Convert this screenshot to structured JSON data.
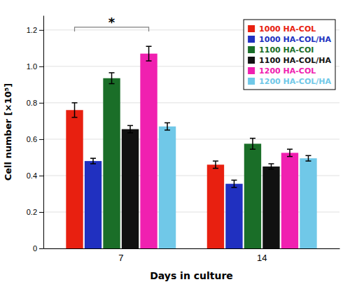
{
  "chart_data": {
    "type": "bar",
    "categories": [
      "7",
      "14"
    ],
    "series": [
      {
        "name": "1000 HA-COL",
        "color": "#e82010",
        "values": [
          0.76,
          0.46
        ],
        "errors": [
          0.04,
          0.02
        ]
      },
      {
        "name": "1000 HA-COL/HA",
        "color": "#2030c0",
        "values": [
          0.48,
          0.355
        ],
        "errors": [
          0.015,
          0.02
        ]
      },
      {
        "name": "1100 HA-COI",
        "color": "#1a6e28",
        "values": [
          0.935,
          0.575
        ],
        "errors": [
          0.03,
          0.03
        ]
      },
      {
        "name": "1100 HA-COL/HA",
        "color": "#111111",
        "values": [
          0.655,
          0.45
        ],
        "errors": [
          0.02,
          0.015
        ]
      },
      {
        "name": "1200 HA-COL",
        "color": "#f020b0",
        "values": [
          1.07,
          0.525
        ],
        "errors": [
          0.04,
          0.02
        ]
      },
      {
        "name": "1200 HA-COL/HA",
        "color": "#70c8e8",
        "values": [
          0.67,
          0.495
        ],
        "errors": [
          0.02,
          0.015
        ]
      }
    ],
    "xlabel": "Days in culture",
    "ylabel": "Cell number [×10⁵]",
    "ylim": [
      0,
      1.28
    ],
    "yticks": [
      0,
      0.2,
      0.4,
      0.6,
      0.8,
      {
        "value": 1.0,
        "label": "1.0"
      },
      1.2
    ],
    "grid": true,
    "legend": "upper right",
    "annotations": [
      {
        "text": "*",
        "y": 1.215,
        "category": "7",
        "series": [
          "1000 HA-COL",
          "1200 HA-COL"
        ]
      }
    ]
  }
}
